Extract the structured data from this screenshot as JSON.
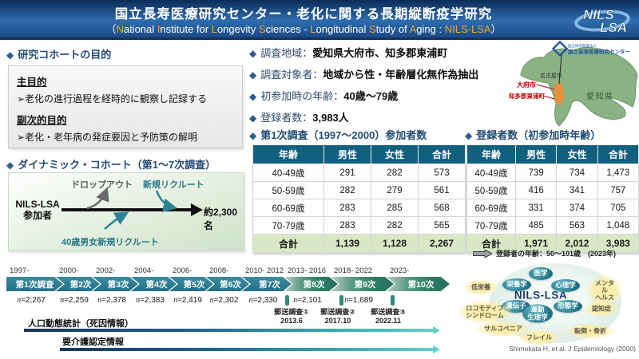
{
  "ui": {
    "bullet_icon": "◆"
  },
  "colors": {
    "accent_orange": "#eba93d",
    "table_header_teal": "#11607f",
    "total_row_green": "#d9e7c6",
    "chevron_blue": "#2a7a90",
    "chevron_green": "#2e7f67",
    "marker_teal": "#2e8b74",
    "highlight_red": "#c00000"
  },
  "header": {
    "title": "国立長寿医療研究センター・老化に関する長期縦断疫学研究",
    "subtitle_segments": [
      {
        "t": "（",
        "hl": false
      },
      {
        "t": "N",
        "hl": true
      },
      {
        "t": "ational ",
        "hl": false
      },
      {
        "t": "I",
        "hl": true
      },
      {
        "t": "nstitute for ",
        "hl": false
      },
      {
        "t": "L",
        "hl": true
      },
      {
        "t": "ongevity ",
        "hl": false
      },
      {
        "t": "S",
        "hl": true
      },
      {
        "t": "ciences - ",
        "hl": false
      },
      {
        "t": "L",
        "hl": true
      },
      {
        "t": "ongitudinal ",
        "hl": false
      },
      {
        "t": "S",
        "hl": true
      },
      {
        "t": "tudy of ",
        "hl": false
      },
      {
        "t": "A",
        "hl": true
      },
      {
        "t": "ging : ",
        "hl": false
      },
      {
        "t": "NILS-LSA",
        "hl": true
      },
      {
        "t": "）",
        "hl": false
      }
    ],
    "logo_line1": "NILS",
    "logo_line2": "LSA"
  },
  "purpose": {
    "heading": "研究コホートの目的",
    "primary_label": "主目的",
    "primary_item": "➢老化の進行過程を経時的に観察し記録する",
    "secondary_label": "副次的目的",
    "secondary_item": "➢老化・老年病の発症要因と予防策の解明"
  },
  "dynamic_cohort": {
    "heading": "ダイナミック・コホート（第1～7次調査）",
    "participant": "NILS-LSA\n参加者",
    "dropout": "ドロップアウト",
    "new_recruit": "新規リクルート",
    "recruit40": "40歳男女新規リクルート",
    "total": "約2,300名"
  },
  "survey_info": {
    "items": [
      {
        "label": "調査地域",
        "value": "愛知県大府市、知多郡東浦町"
      },
      {
        "label": "調査対象者",
        "value": "地域から性・年齢層化無作為抽出"
      },
      {
        "label": "初参加時の年齢",
        "value": "40歳～79歳"
      },
      {
        "label": "登録者数",
        "value": "3,983人"
      }
    ]
  },
  "map": {
    "nagoya": "名古屋市",
    "prefecture": "愛知県",
    "obu": "大府市",
    "higashiura": "知多郡東浦町",
    "org_line1": "国立研究開発法人",
    "org_line2": "国立長寿医療研究センター"
  },
  "table1": {
    "heading": "第1次調査（1997～2000）参加者数",
    "headers": [
      "年齢",
      "男性",
      "女性",
      "合計"
    ],
    "rows": [
      [
        "40-49歳",
        "291",
        "282",
        "573"
      ],
      [
        "50-59歳",
        "282",
        "279",
        "561"
      ],
      [
        "60-69歳",
        "283",
        "285",
        "568"
      ],
      [
        "70-79歳",
        "283",
        "282",
        "565"
      ]
    ],
    "total_row": [
      "合計",
      "1,139",
      "1,128",
      "2,267"
    ]
  },
  "table2": {
    "heading": "登録者数（初参加時年齢）",
    "headers": [
      "年齢",
      "男性",
      "女性",
      "合計"
    ],
    "rows": [
      [
        "40-49歳",
        "739",
        "734",
        "1,473"
      ],
      [
        "50-59歳",
        "416",
        "341",
        "757"
      ],
      [
        "60-69歳",
        "331",
        "374",
        "705"
      ],
      [
        "70-79歳",
        "485",
        "563",
        "1,048"
      ]
    ],
    "total_row": [
      "合計",
      "1,971",
      "2,012",
      "3,983"
    ],
    "note": "登録者の年齢：50～101歳　(2023年)"
  },
  "timeline": {
    "n_label": "n",
    "phases": [
      {
        "year": "1997-",
        "label": "第1次調査",
        "n": "2,267",
        "group": "blue"
      },
      {
        "year": "2000-",
        "label": "第2次",
        "n": "2,259",
        "group": "blue"
      },
      {
        "year": "2002-",
        "label": "第3次",
        "n": "2,378",
        "group": "blue"
      },
      {
        "year": "2004-",
        "label": "第4次",
        "n": "2,383",
        "group": "blue"
      },
      {
        "year": "2006-",
        "label": "第5次",
        "n": "2,419",
        "group": "blue"
      },
      {
        "year": "2008-",
        "label": "第6次",
        "n": "2,302",
        "group": "blue"
      },
      {
        "year": "2010- 2012",
        "label": "第7次",
        "n": "2,330",
        "group": "blue"
      },
      {
        "year": "2013- 2016",
        "label": "第8次",
        "n": "2,101",
        "group": "green"
      },
      {
        "year": "2018- 2022",
        "label": "第9次",
        "n": "1,689",
        "group": "green"
      },
      {
        "year": "2023-",
        "label": "第10次",
        "n": "",
        "group": "green"
      }
    ],
    "mail_surveys": [
      {
        "label": "郵送調査①",
        "date": "2013.6"
      },
      {
        "label": "郵送調査②",
        "date": "2017.10"
      },
      {
        "label": "郵送調査③",
        "date": "2022.11"
      }
    ],
    "arrow1_label": "人口動態統計（死因情報）",
    "arrow2_label": "要介護認定情報"
  },
  "research_map": {
    "center": "NILS-LSA",
    "disciplines": [
      "医学",
      "栄養学",
      "心理学",
      "遺伝子",
      "形態学",
      "運動\n生理学"
    ],
    "topics": [
      "低栄養",
      "メンタル\nヘルス",
      "ロコモティブ\nシンドローム",
      "認知症",
      "サルコペニア",
      "フレイル",
      "転倒・骨折"
    ],
    "citation": "Shimokata H, et al. J Epidemiology (2000)"
  }
}
